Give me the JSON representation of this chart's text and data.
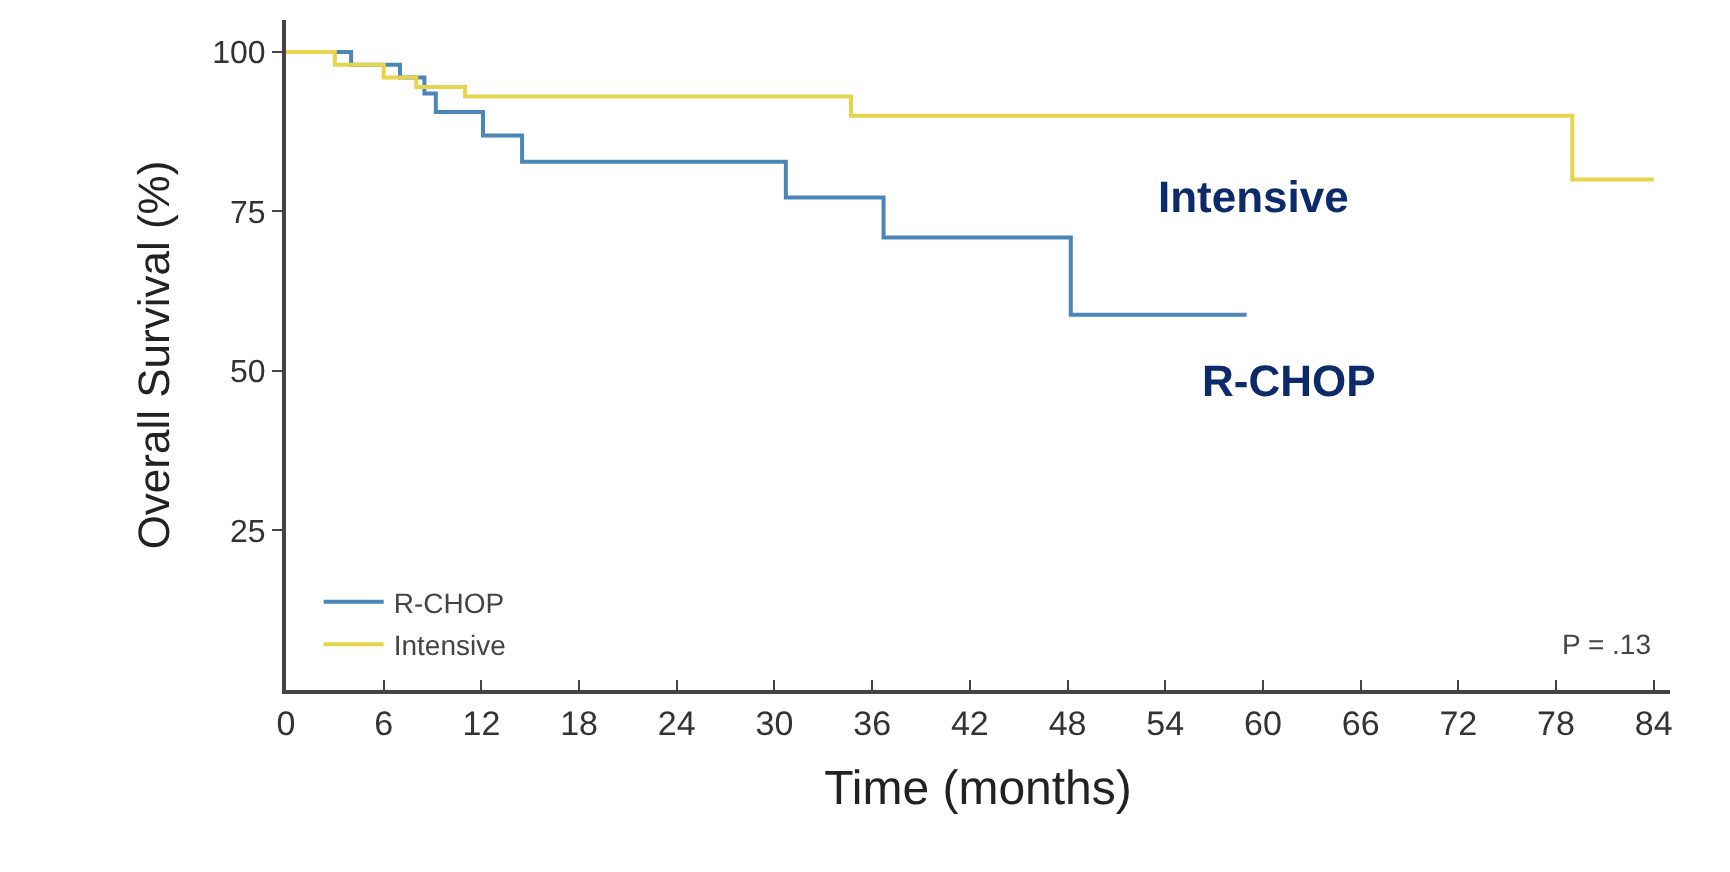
{
  "chart_data": {
    "type": "step",
    "xlabel": "Time (months)",
    "ylabel": "Overall Survival (%)",
    "xlim": [
      0,
      85
    ],
    "ylim": [
      0,
      105
    ],
    "xticks": [
      0,
      6,
      12,
      18,
      24,
      30,
      36,
      42,
      48,
      54,
      60,
      66,
      72,
      78,
      84
    ],
    "yticks": [
      25,
      50,
      75,
      100
    ],
    "legend": "bottom left",
    "marker": "none",
    "line_style": "solid",
    "series": [
      {
        "name": "R-CHOP",
        "color": "#4a86b8",
        "x": [
          0,
          4,
          7,
          8.5,
          9.2,
          12.1,
          14.5,
          30.7,
          36.7,
          48.2,
          59
        ],
        "values": [
          100,
          98,
          96,
          93.5,
          90.6,
          86.9,
          82.8,
          77.2,
          70.9,
          58.8,
          58.8
        ]
      },
      {
        "name": "Intensive",
        "color": "#e6d54a",
        "x": [
          0,
          3,
          6,
          8,
          11,
          34.7,
          79,
          84
        ],
        "values": [
          100,
          98,
          96,
          94.5,
          93,
          90,
          80,
          80
        ]
      }
    ],
    "annotations": [
      "Intensive",
      "R-CHOP",
      "P = .13"
    ]
  }
}
